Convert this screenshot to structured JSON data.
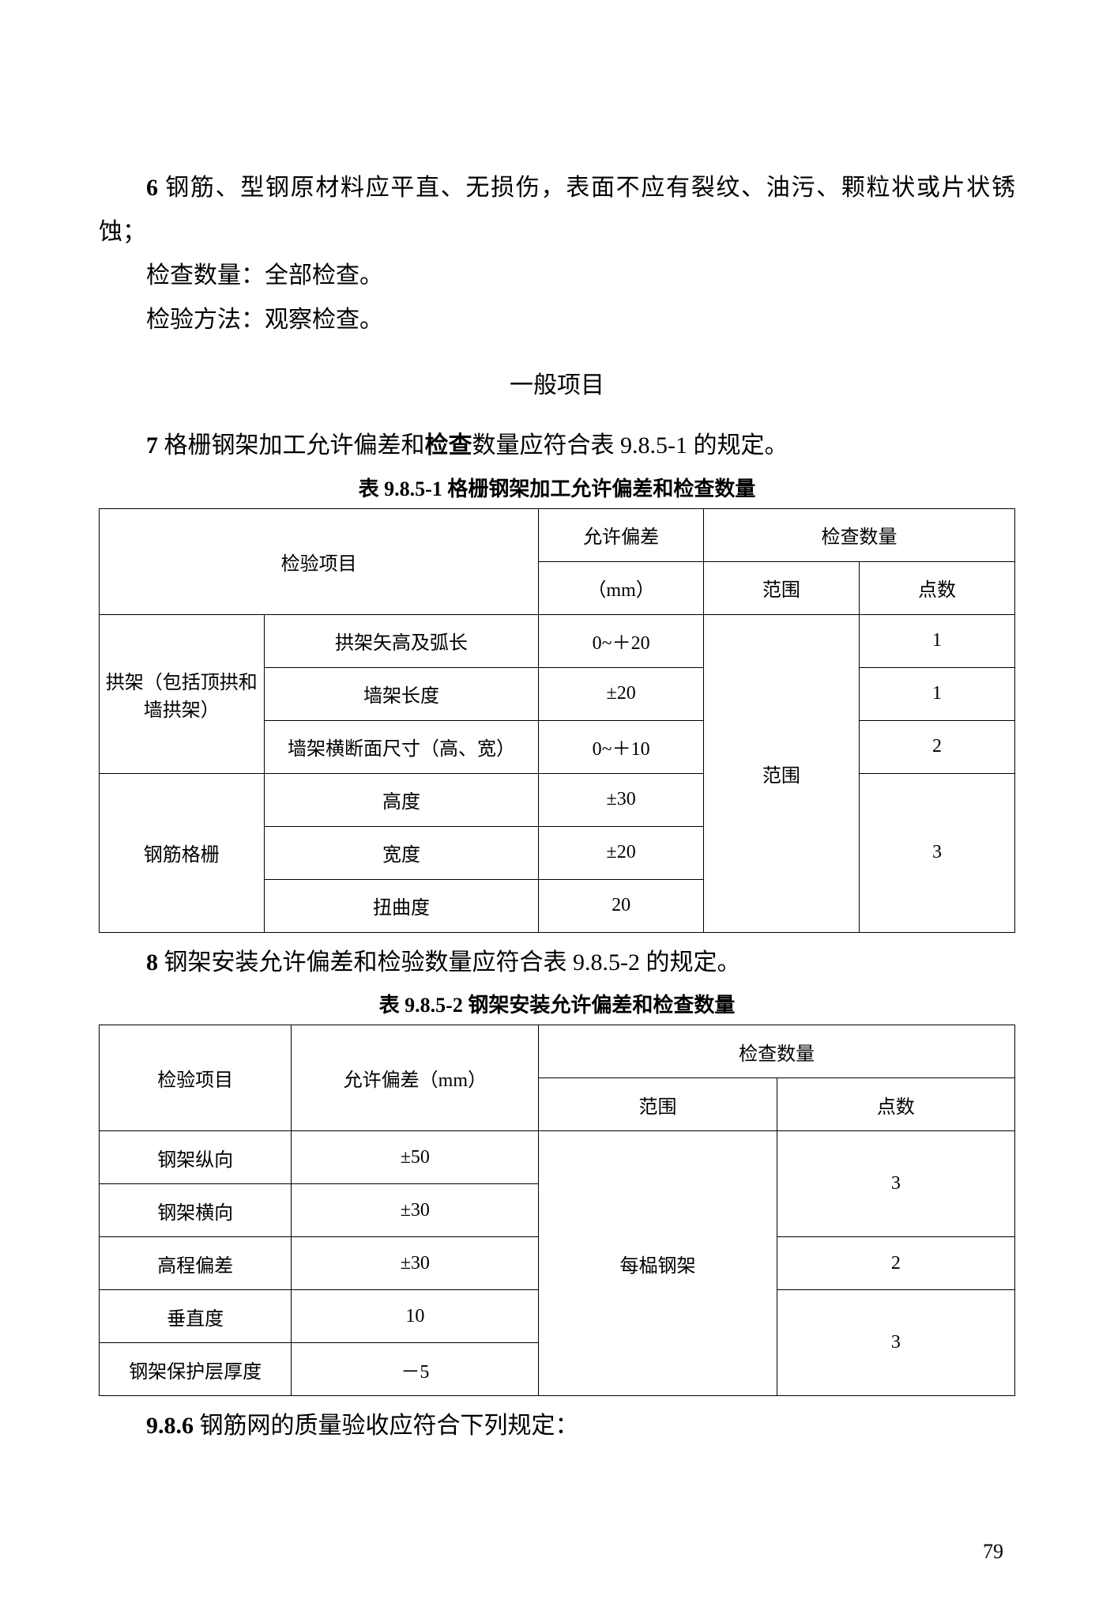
{
  "p6_num": "6",
  "p6_text": "  钢筋、型钢原材料应平直、无损伤，表面不应有裂纹、油污、颗粒状或片状锈蚀；",
  "p6_check_qty": "检查数量：全部检查。",
  "p6_check_method": "检验方法：观察检查。",
  "section_heading": "一般项目",
  "p7_num": "7",
  "p7_pre": "  格栅钢架加工允许偏差和",
  "p7_bold": "检查",
  "p7_post": "数量应符合表 9.8.5-1 的规定。",
  "table1_caption": "表 9.8.5-1    格栅钢架加工允许偏差和检查数量",
  "table1": {
    "h_item": "检验项目",
    "h_tol": "允许偏差",
    "h_tol_unit": "（mm）",
    "h_qty": "检查数量",
    "h_range": "范围",
    "h_points": "点数",
    "g1": "拱架（包括顶拱和墙拱架）",
    "g1r1_item": "拱架矢高及弧长",
    "g1r1_tol": "0~＋20",
    "g1r1_pts": "1",
    "g1r2_item": "墙架长度",
    "g1r2_tol": "±20",
    "g1r2_pts": "1",
    "g1r3_item": "墙架横断面尺寸（高、宽）",
    "g1r3_tol": "0~＋10",
    "g1r3_pts": "2",
    "g2": "钢筋格栅",
    "g2r1_item": "高度",
    "g2r1_tol": "±30",
    "g2r2_item": "宽度",
    "g2r2_tol": "±20",
    "g2r3_item": "扭曲度",
    "g2r3_tol": "20",
    "g2_pts": "3",
    "scope": "范围"
  },
  "p8_num": "8",
  "p8_text": "  钢架安装允许偏差和检验数量应符合表 9.8.5-2 的规定。",
  "table2_caption": "表 9.8.5-2    钢架安装允许偏差和检查数量",
  "table2": {
    "h_item": "检验项目",
    "h_tol": "允许偏差（mm）",
    "h_qty": "检查数量",
    "h_range": "范围",
    "h_points": "点数",
    "r1_item": "钢架纵向",
    "r1_tol": "±50",
    "r2_item": "钢架横向",
    "r2_tol": "±30",
    "r3_item": "高程偏差",
    "r3_tol": "±30",
    "r4_item": "垂直度",
    "r4_tol": "10",
    "r5_item": "钢架保护层厚度",
    "r5_tol": "－5",
    "scope": "每榀钢架",
    "p12": "3",
    "p3": "2",
    "p45": "3"
  },
  "p986_num": "9.8.6",
  "p986_text": "    钢筋网的质量验收应符合下列规定：",
  "page_number": "79"
}
